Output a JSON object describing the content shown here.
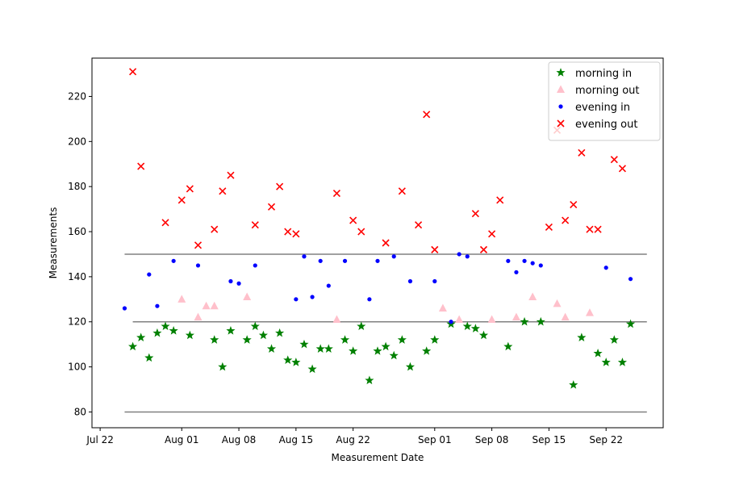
{
  "chart_data": {
    "type": "scatter",
    "xlabel": "Measurement Date",
    "ylabel": "Measurements",
    "x_ticks": [
      {
        "date": "2023-07-22",
        "label": "Jul 22"
      },
      {
        "date": "2023-08-01",
        "label": "Aug 01"
      },
      {
        "date": "2023-08-08",
        "label": "Aug 08"
      },
      {
        "date": "2023-08-15",
        "label": "Aug 15"
      },
      {
        "date": "2023-08-22",
        "label": "Aug 22"
      },
      {
        "date": "2023-09-01",
        "label": "Sep 01"
      },
      {
        "date": "2023-09-08",
        "label": "Sep 08"
      },
      {
        "date": "2023-09-15",
        "label": "Sep 15"
      },
      {
        "date": "2023-09-22",
        "label": "Sep 22"
      }
    ],
    "y_ticks": [
      80,
      100,
      120,
      140,
      160,
      180,
      200,
      220
    ],
    "xlim": [
      "2023-07-21",
      "2023-09-29"
    ],
    "ylim": [
      73,
      237
    ],
    "grid": false,
    "legend_position": "top-right",
    "reference_lines": [
      {
        "y": 150,
        "x_start": "2023-07-25",
        "x_end": "2023-09-27",
        "color": "#808080"
      },
      {
        "y": 120,
        "x_start": "2023-07-26",
        "x_end": "2023-09-27",
        "color": "#808080"
      },
      {
        "y": 80,
        "x_start": "2023-07-25",
        "x_end": "2023-09-27",
        "color": "#808080"
      }
    ],
    "series": [
      {
        "name": "morning in",
        "marker": "star",
        "color": "#008000",
        "points": [
          [
            "2023-07-26",
            109
          ],
          [
            "2023-07-27",
            113
          ],
          [
            "2023-07-28",
            104
          ],
          [
            "2023-07-29",
            115
          ],
          [
            "2023-07-30",
            118
          ],
          [
            "2023-07-31",
            116
          ],
          [
            "2023-08-02",
            114
          ],
          [
            "2023-08-05",
            112
          ],
          [
            "2023-08-06",
            100
          ],
          [
            "2023-08-07",
            116
          ],
          [
            "2023-08-09",
            112
          ],
          [
            "2023-08-10",
            118
          ],
          [
            "2023-08-11",
            114
          ],
          [
            "2023-08-12",
            108
          ],
          [
            "2023-08-13",
            115
          ],
          [
            "2023-08-14",
            103
          ],
          [
            "2023-08-15",
            102
          ],
          [
            "2023-08-16",
            110
          ],
          [
            "2023-08-17",
            99
          ],
          [
            "2023-08-18",
            108
          ],
          [
            "2023-08-19",
            108
          ],
          [
            "2023-08-21",
            112
          ],
          [
            "2023-08-22",
            107
          ],
          [
            "2023-08-23",
            118
          ],
          [
            "2023-08-24",
            94
          ],
          [
            "2023-08-25",
            107
          ],
          [
            "2023-08-26",
            109
          ],
          [
            "2023-08-27",
            105
          ],
          [
            "2023-08-28",
            112
          ],
          [
            "2023-08-29",
            100
          ],
          [
            "2023-08-31",
            107
          ],
          [
            "2023-09-01",
            112
          ],
          [
            "2023-09-03",
            119
          ],
          [
            "2023-09-05",
            118
          ],
          [
            "2023-09-06",
            117
          ],
          [
            "2023-09-07",
            114
          ],
          [
            "2023-09-10",
            109
          ],
          [
            "2023-09-12",
            120
          ],
          [
            "2023-09-14",
            120
          ],
          [
            "2023-09-18",
            92
          ],
          [
            "2023-09-19",
            113
          ],
          [
            "2023-09-21",
            106
          ],
          [
            "2023-09-22",
            102
          ],
          [
            "2023-09-23",
            112
          ],
          [
            "2023-09-24",
            102
          ],
          [
            "2023-09-25",
            119
          ]
        ]
      },
      {
        "name": "morning out",
        "marker": "triangle",
        "color": "#ffc0cb",
        "points": [
          [
            "2023-08-01",
            130
          ],
          [
            "2023-08-03",
            122
          ],
          [
            "2023-08-04",
            127
          ],
          [
            "2023-08-05",
            127
          ],
          [
            "2023-08-09",
            131
          ],
          [
            "2023-08-20",
            121
          ],
          [
            "2023-09-02",
            126
          ],
          [
            "2023-09-04",
            121
          ],
          [
            "2023-09-08",
            121
          ],
          [
            "2023-09-11",
            122
          ],
          [
            "2023-09-13",
            131
          ],
          [
            "2023-09-16",
            128
          ],
          [
            "2023-09-17",
            122
          ],
          [
            "2023-09-20",
            124
          ]
        ]
      },
      {
        "name": "evening in",
        "marker": "circle",
        "color": "#0000ff",
        "points": [
          [
            "2023-07-25",
            126
          ],
          [
            "2023-07-28",
            141
          ],
          [
            "2023-07-29",
            127
          ],
          [
            "2023-07-31",
            147
          ],
          [
            "2023-08-03",
            145
          ],
          [
            "2023-08-07",
            138
          ],
          [
            "2023-08-08",
            137
          ],
          [
            "2023-08-10",
            145
          ],
          [
            "2023-08-15",
            130
          ],
          [
            "2023-08-16",
            149
          ],
          [
            "2023-08-17",
            131
          ],
          [
            "2023-08-18",
            147
          ],
          [
            "2023-08-19",
            136
          ],
          [
            "2023-08-21",
            147
          ],
          [
            "2023-08-24",
            130
          ],
          [
            "2023-08-25",
            147
          ],
          [
            "2023-08-27",
            149
          ],
          [
            "2023-08-29",
            138
          ],
          [
            "2023-09-01",
            138
          ],
          [
            "2023-09-03",
            120
          ],
          [
            "2023-09-04",
            150
          ],
          [
            "2023-09-05",
            149
          ],
          [
            "2023-09-10",
            147
          ],
          [
            "2023-09-11",
            142
          ],
          [
            "2023-09-12",
            147
          ],
          [
            "2023-09-13",
            146
          ],
          [
            "2023-09-14",
            145
          ],
          [
            "2023-09-22",
            144
          ],
          [
            "2023-09-25",
            139
          ]
        ]
      },
      {
        "name": "evening out",
        "marker": "x",
        "color": "#ff0000",
        "points": [
          [
            "2023-07-26",
            231
          ],
          [
            "2023-07-27",
            189
          ],
          [
            "2023-07-30",
            164
          ],
          [
            "2023-08-01",
            174
          ],
          [
            "2023-08-02",
            179
          ],
          [
            "2023-08-03",
            154
          ],
          [
            "2023-08-05",
            161
          ],
          [
            "2023-08-06",
            178
          ],
          [
            "2023-08-07",
            185
          ],
          [
            "2023-08-10",
            163
          ],
          [
            "2023-08-12",
            171
          ],
          [
            "2023-08-13",
            180
          ],
          [
            "2023-08-14",
            160
          ],
          [
            "2023-08-15",
            159
          ],
          [
            "2023-08-20",
            177
          ],
          [
            "2023-08-22",
            165
          ],
          [
            "2023-08-23",
            160
          ],
          [
            "2023-08-26",
            155
          ],
          [
            "2023-08-28",
            178
          ],
          [
            "2023-08-30",
            163
          ],
          [
            "2023-08-31",
            212
          ],
          [
            "2023-09-01",
            152
          ],
          [
            "2023-09-06",
            168
          ],
          [
            "2023-09-07",
            152
          ],
          [
            "2023-09-08",
            159
          ],
          [
            "2023-09-09",
            174
          ],
          [
            "2023-09-15",
            162
          ],
          [
            "2023-09-16",
            205
          ],
          [
            "2023-09-17",
            165
          ],
          [
            "2023-09-18",
            172
          ],
          [
            "2023-09-19",
            195
          ],
          [
            "2023-09-20",
            161
          ],
          [
            "2023-09-21",
            161
          ],
          [
            "2023-09-23",
            192
          ],
          [
            "2023-09-24",
            188
          ]
        ]
      }
    ]
  }
}
